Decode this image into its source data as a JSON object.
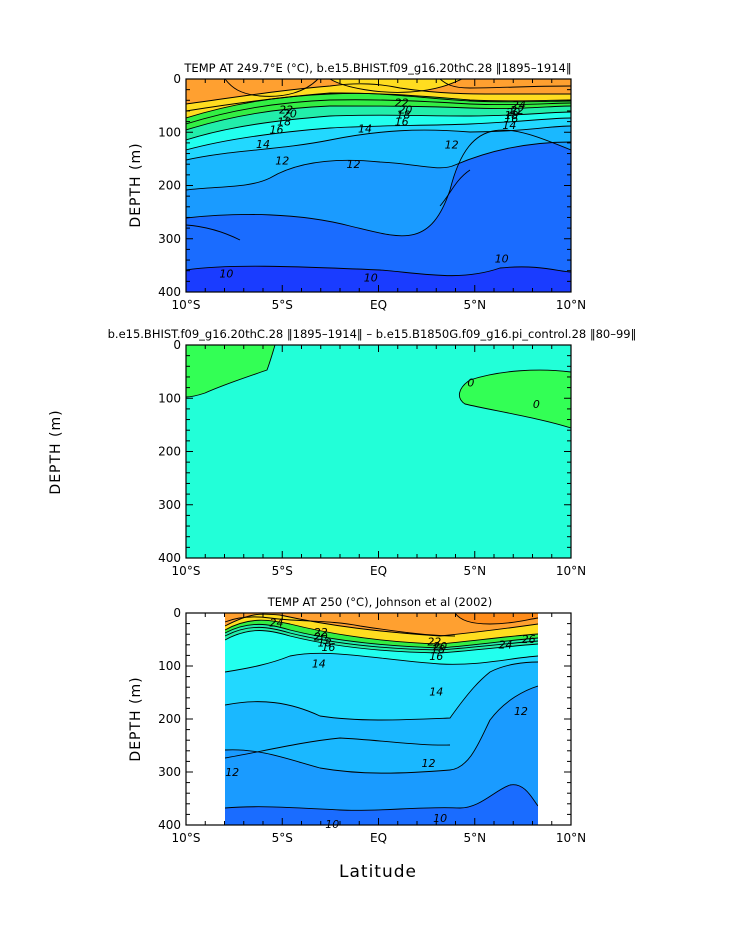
{
  "figure": {
    "xlabel": "Latitude"
  },
  "colors": {
    "c_orange2": "#ff8c1a",
    "c_orange": "#ffa030",
    "c_yellow": "#ffdd20",
    "c_green": "#33ee44",
    "c_teal": "#22eeaa",
    "c_aqua": "#22ffee",
    "c_cyan": "#22d8ff",
    "c_lightblue": "#1ab8ff",
    "c_blue": "#1a9bff",
    "c_deepblue": "#1a6cff",
    "c_navy": "#1a3cff",
    "c_diff_bg": "#22ffd8",
    "c_diff_green": "#33ff55"
  },
  "chart_data": [
    {
      "type": "contour",
      "title": "TEMP AT 249.7°E (°C), b.e15.BHIST.f09_g16.20thC.28 ‖1895–1914‖",
      "ylabel": "DEPTH (m)",
      "xlim": [
        -10,
        10
      ],
      "ylim": [
        400,
        0
      ],
      "xticks": [
        "10°S",
        "5°S",
        "EQ",
        "5°N",
        "10°N"
      ],
      "yticks": [
        "0",
        "100",
        "200",
        "300",
        "400"
      ],
      "contour_labels": [
        {
          "text": "22",
          "lat": -4.8,
          "depth": 57
        },
        {
          "text": "20",
          "lat": -4.6,
          "depth": 65
        },
        {
          "text": "18",
          "lat": -4.9,
          "depth": 80
        },
        {
          "text": "16",
          "lat": -5.3,
          "depth": 95
        },
        {
          "text": "14",
          "lat": -6.0,
          "depth": 122
        },
        {
          "text": "12",
          "lat": -5.0,
          "depth": 153
        },
        {
          "text": "22",
          "lat": 1.2,
          "depth": 44
        },
        {
          "text": "20",
          "lat": 1.4,
          "depth": 57
        },
        {
          "text": "18",
          "lat": 1.3,
          "depth": 67
        },
        {
          "text": "16",
          "lat": 1.2,
          "depth": 80
        },
        {
          "text": "14",
          "lat": -0.7,
          "depth": 93
        },
        {
          "text": "12",
          "lat": -1.3,
          "depth": 160
        },
        {
          "text": "12",
          "lat": 3.8,
          "depth": 123
        },
        {
          "text": "24",
          "lat": 7.3,
          "depth": 48
        },
        {
          "text": "22",
          "lat": 7.2,
          "depth": 58
        },
        {
          "text": "20",
          "lat": 7.0,
          "depth": 62
        },
        {
          "text": "18",
          "lat": 6.9,
          "depth": 68
        },
        {
          "text": "16",
          "lat": 6.9,
          "depth": 74
        },
        {
          "text": "14",
          "lat": 6.8,
          "depth": 86
        },
        {
          "text": "10",
          "lat": -7.9,
          "depth": 365
        },
        {
          "text": "10",
          "lat": -0.4,
          "depth": 373
        },
        {
          "text": "10",
          "lat": 6.4,
          "depth": 337
        }
      ]
    },
    {
      "type": "contour",
      "title": "b.e15.BHIST.f09_g16.20thC.28 ‖1895–1914‖ – b.e15.B1850G.f09_g16.pi_control.28 ‖80–99‖",
      "ylabel": "DEPTH (m)",
      "xlim": [
        -10,
        10
      ],
      "ylim": [
        400,
        0
      ],
      "xticks": [
        "10°S",
        "5°S",
        "EQ",
        "5°N",
        "10°N"
      ],
      "yticks": [
        "0",
        "100",
        "200",
        "300",
        "400"
      ],
      "contour_labels": [
        {
          "text": "0",
          "lat": 4.8,
          "depth": 70
        },
        {
          "text": "0",
          "lat": 8.2,
          "depth": 111
        }
      ]
    },
    {
      "type": "contour",
      "title": "TEMP AT 250 (°C), Johnson et al (2002)",
      "ylabel": "DEPTH (m)",
      "xlim": [
        -10,
        10
      ],
      "ylim": [
        400,
        0
      ],
      "xticks": [
        "10°S",
        "5°S",
        "EQ",
        "5°N",
        "10°N"
      ],
      "yticks": [
        "0",
        "100",
        "200",
        "300",
        "400"
      ],
      "contour_labels": [
        {
          "text": "24",
          "lat": -5.3,
          "depth": 18
        },
        {
          "text": "22",
          "lat": -3.0,
          "depth": 36
        },
        {
          "text": "20",
          "lat": -3.0,
          "depth": 44
        },
        {
          "text": "18",
          "lat": -2.8,
          "depth": 56
        },
        {
          "text": "16",
          "lat": -2.6,
          "depth": 64
        },
        {
          "text": "14",
          "lat": -3.1,
          "depth": 95
        },
        {
          "text": "22",
          "lat": 2.9,
          "depth": 54
        },
        {
          "text": "20",
          "lat": 3.2,
          "depth": 62
        },
        {
          "text": "18",
          "lat": 3.1,
          "depth": 68
        },
        {
          "text": "16",
          "lat": 3.0,
          "depth": 81
        },
        {
          "text": "24",
          "lat": 6.6,
          "depth": 59
        },
        {
          "text": "26",
          "lat": 7.8,
          "depth": 49
        },
        {
          "text": "14",
          "lat": 3.0,
          "depth": 148
        },
        {
          "text": "12",
          "lat": 7.4,
          "depth": 185
        },
        {
          "text": "12",
          "lat": -7.6,
          "depth": 300
        },
        {
          "text": "12",
          "lat": 2.6,
          "depth": 283
        },
        {
          "text": "10",
          "lat": -2.4,
          "depth": 398
        },
        {
          "text": "10",
          "lat": 3.2,
          "depth": 387
        }
      ]
    }
  ]
}
